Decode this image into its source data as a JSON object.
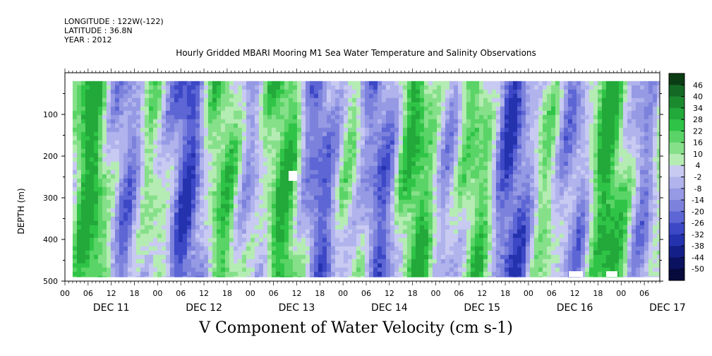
{
  "meta": {
    "longitude": "LONGITUDE : 122W(-122)",
    "latitude": "LATITUDE : 36.8N",
    "year": "YEAR : 2012"
  },
  "chart_data": {
    "type": "heatmap",
    "title": "Hourly Gridded MBARI Mooring M1 Sea Water Temperature and Salinity Observations",
    "variable_title": "V Component of Water Velocity (cm s-1)",
    "ylabel": "DEPTH (m)",
    "ylim": [
      500,
      0
    ],
    "yticks": [
      "100",
      "200",
      "300",
      "400",
      "500"
    ],
    "x_hour_ticks": [
      "00",
      "06",
      "12",
      "18",
      "00",
      "06",
      "12",
      "18",
      "00",
      "06",
      "12",
      "18",
      "00",
      "06",
      "12",
      "18",
      "00",
      "06",
      "12",
      "18",
      "00",
      "06",
      "12",
      "18",
      "00",
      "06"
    ],
    "x_day_labels": [
      "DEC 11",
      "DEC 12",
      "DEC 13",
      "DEC 14",
      "DEC 15",
      "DEC 16",
      "DEC 17"
    ],
    "colorbar_labels": [
      "46",
      "40",
      "34",
      "28",
      "22",
      "16",
      "10",
      "4",
      "-2",
      "-8",
      "-14",
      "-20",
      "-26",
      "-32",
      "-38",
      "-44",
      "-50"
    ],
    "colorbar_colors": [
      "#0b3d14",
      "#146a24",
      "#1b8a2f",
      "#23a83a",
      "#2fc447",
      "#5ad466",
      "#86e08a",
      "#b5ecb3",
      "#c8caf2",
      "#b0b3ec",
      "#969ae4",
      "#7c82dc",
      "#5d66d4",
      "#3c48c6",
      "#2432ae",
      "#141f88",
      "#0b1260",
      "#060a3c"
    ],
    "x_range_days": [
      "DEC 11 00",
      "DEC 17 10"
    ],
    "data_start": "DEC 11 02",
    "data_depth_range_m": [
      20,
      490
    ]
  }
}
